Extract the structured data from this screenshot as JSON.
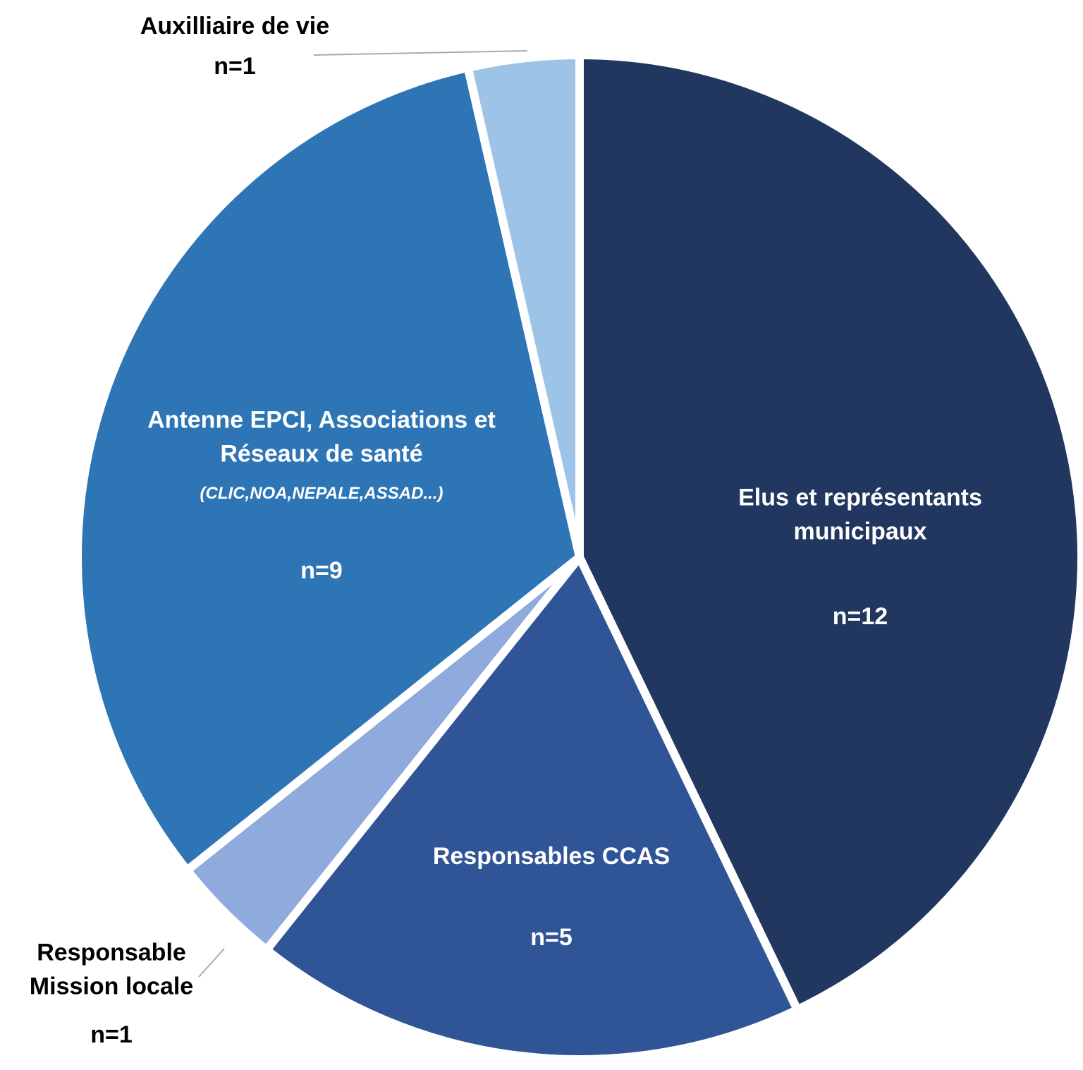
{
  "chart_data": {
    "type": "pie",
    "categories": [
      "Elus et représentants municipaux",
      "Responsables CCAS",
      "Responsable Mission locale",
      "Antenne EPCI, Associations et Réseaux de santé",
      "Auxilliaire de vie"
    ],
    "values": [
      12,
      5,
      1,
      9,
      1
    ],
    "value_labels": [
      "n=12",
      "n=5",
      "n=1",
      "n=9",
      "n=1"
    ],
    "colors": [
      "#21375f",
      "#2f5597",
      "#8faadc",
      "#2e75b6",
      "#9dc3e6"
    ],
    "annotations": [
      {
        "text": "(CLIC,NOA,NEPALE,ASSAD...)"
      }
    ]
  }
}
